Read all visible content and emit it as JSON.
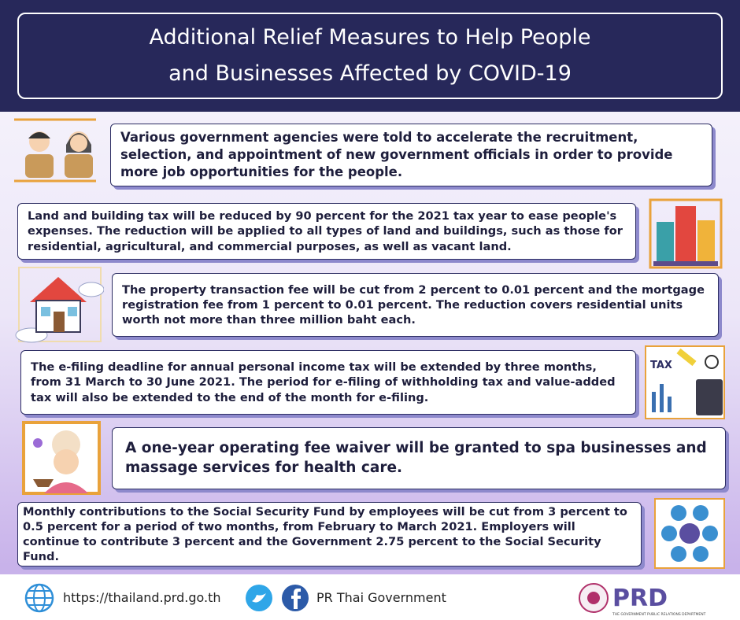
{
  "header": {
    "title_lines": [
      "Additional Relief Measures to Help People",
      "and Businesses Affected by COVID-19"
    ]
  },
  "items": [
    {
      "text": "Various government agencies were told to accelerate the recruitment, selection, and appointment of new government officials in order to provide more job opportunities for the people."
    },
    {
      "text": "Land and building tax will be reduced by 90 percent for the 2021 tax year to ease people's expenses. The reduction will be applied to all types of land and buildings, such as those for residential, agricultural, and commercial purposes, as well as vacant land."
    },
    {
      "text": "The property transaction fee will be cut from 2 percent to 0.01 percent and the mortgage registration fee from 1 percent to 0.01 percent. The reduction covers residential units worth not more than three million baht each."
    },
    {
      "text": "The e-filing deadline for annual personal income tax will be extended by three months, from 31 March to 30 June 2021. The period for e-filing of withholding tax and value-added tax will also be extended to the end of the month for e-filing."
    },
    {
      "text": "A one-year operating fee waiver will be granted to spa businesses and massage services for health care."
    },
    {
      "text": "Monthly contributions to the Social Security Fund by employees will be cut from 3 percent to 0.5 percent for a period of two months, from February to March 2021. Employers will continue to contribute 3 percent and the Government 2.75 percent to the Social Security Fund."
    }
  ],
  "icon_labels": {
    "tax": "TAX"
  },
  "footer": {
    "url": "https://thailand.prd.go.th",
    "social": "PR Thai Government",
    "logo": "PRD",
    "logo_caption": "THE GOVERNMENT PUBLIC RELATIONS DEPARTMENT"
  }
}
